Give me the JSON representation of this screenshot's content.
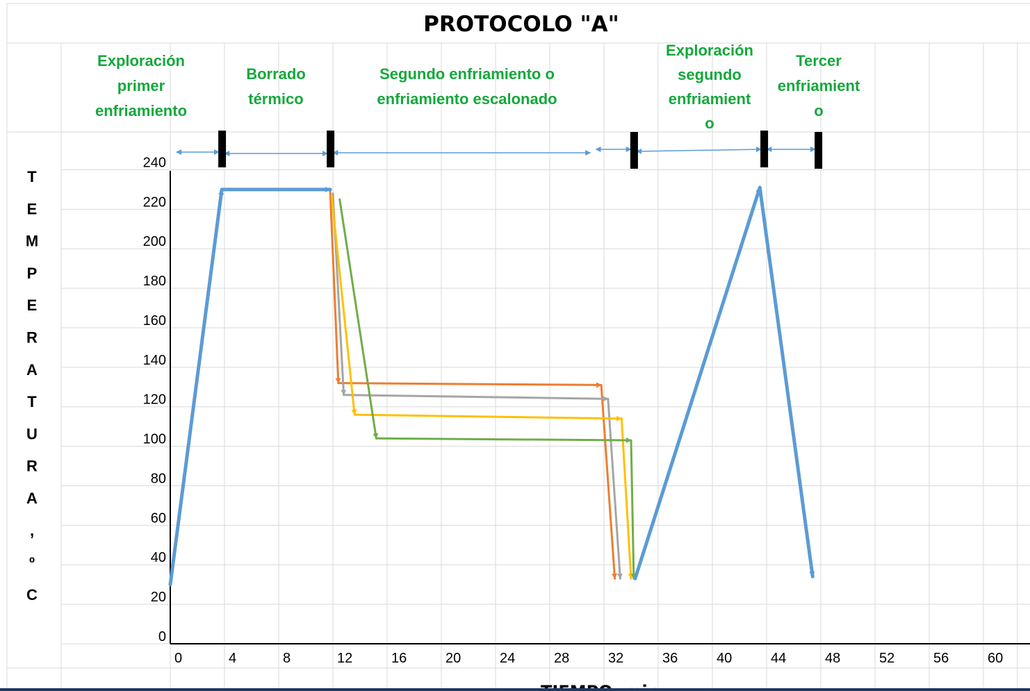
{
  "chart_data": {
    "type": "line",
    "title": "PROTOCOLO \"A\"",
    "xlabel": "TIEMPO, min.",
    "ylabel": "TEMPERATURA, ºC",
    "ylabel_letters": [
      "T",
      "E",
      "M",
      "P",
      "E",
      "R",
      "A",
      "T",
      "U",
      "R",
      "A",
      ",",
      "º",
      "C"
    ],
    "xlim": [
      0,
      63
    ],
    "ylim": [
      0,
      250
    ],
    "x_ticks": [
      "0",
      "4",
      "8",
      "12",
      "16",
      "20",
      "24",
      "28",
      "32",
      "36",
      "40",
      "44",
      "48",
      "52",
      "56",
      "60"
    ],
    "y_ticks": [
      "0",
      "20",
      "40",
      "60",
      "80",
      "100",
      "120",
      "140",
      "160",
      "180",
      "200",
      "220",
      "240"
    ],
    "grid": true,
    "phases": [
      {
        "lines": [
          "Exploración",
          "primer",
          "enfriamiento"
        ]
      },
      {
        "lines": [
          "Borrado",
          "térmico"
        ]
      },
      {
        "lines": [
          "Segundo enfriamiento o",
          "enfriamiento escalonado"
        ]
      },
      {
        "lines": [
          "Exploración",
          "segundo",
          "enfriamient",
          "o"
        ]
      },
      {
        "lines": [
          "Tercer",
          "enfriamient",
          "o"
        ]
      }
    ],
    "phase_markers_x": [
      3.8,
      11.8,
      34.2,
      43.8,
      47.8
    ],
    "series": [
      {
        "color": "#5b9bd5",
        "points": [
          [
            0,
            30
          ],
          [
            3.8,
            230
          ],
          [
            11.8,
            230
          ]
        ],
        "cont_points": [
          [
            34.3,
            33
          ],
          [
            43.5,
            231
          ],
          [
            47.4,
            34
          ]
        ]
      },
      {
        "color": "#ed7d31",
        "points": [
          [
            11.8,
            229
          ],
          [
            12.4,
            132
          ],
          [
            31.8,
            131
          ],
          [
            32.8,
            33
          ]
        ]
      },
      {
        "color": "#a5a5a5",
        "points": [
          [
            12.0,
            228
          ],
          [
            12.8,
            126
          ],
          [
            32.3,
            124
          ],
          [
            33.2,
            33
          ]
        ]
      },
      {
        "color": "#ffc000",
        "points": [
          [
            11.9,
            227
          ],
          [
            13.6,
            116
          ],
          [
            33.3,
            114
          ],
          [
            34.0,
            33
          ]
        ]
      },
      {
        "color": "#70ad47",
        "points": [
          [
            12.5,
            225
          ],
          [
            15.2,
            104
          ],
          [
            34.0,
            103
          ],
          [
            34.2,
            33
          ]
        ]
      }
    ]
  }
}
